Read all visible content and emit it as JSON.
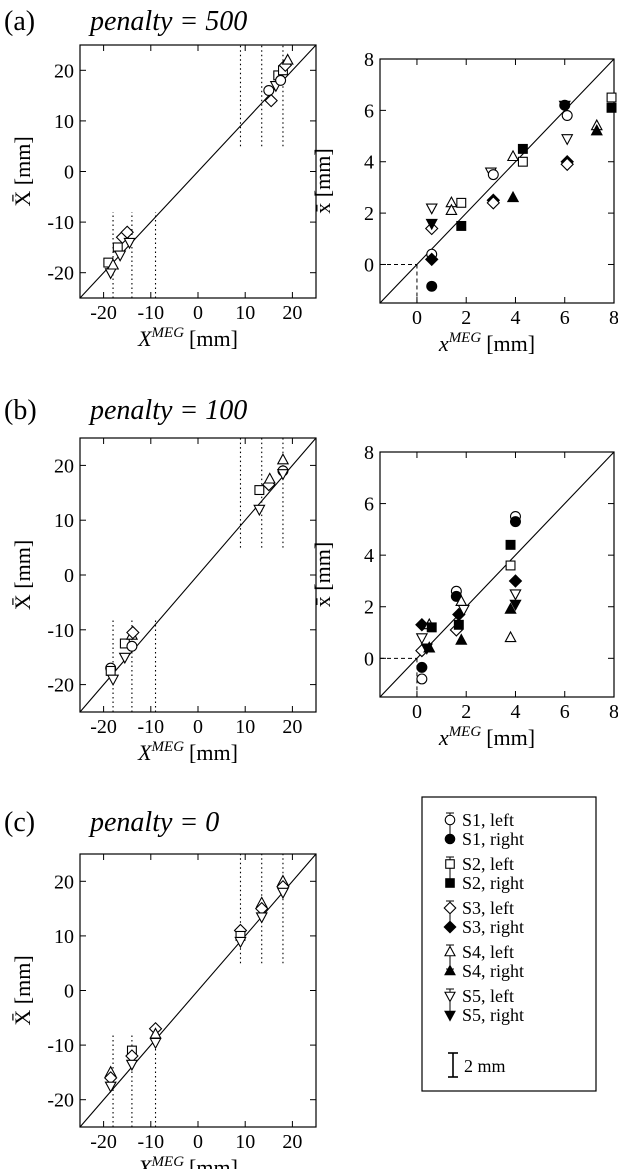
{
  "figure": {
    "panels": [
      {
        "label": "(a)",
        "penalty_label": "penalty = 500"
      },
      {
        "label": "(b)",
        "penalty_label": "penalty = 100"
      },
      {
        "label": "(c)",
        "penalty_label": "penalty = 0"
      }
    ],
    "legend": {
      "entries": [
        {
          "label": "S1, left",
          "marker": "circle",
          "filled": false
        },
        {
          "label": "S1, right",
          "marker": "circle",
          "filled": true
        },
        {
          "label": "S2, left",
          "marker": "square",
          "filled": false
        },
        {
          "label": "S2, right",
          "marker": "square",
          "filled": true
        },
        {
          "label": "S3, left",
          "marker": "diamond",
          "filled": false
        },
        {
          "label": "S3, right",
          "marker": "diamond",
          "filled": true
        },
        {
          "label": "S4, left",
          "marker": "triangle-up",
          "filled": false
        },
        {
          "label": "S4, right",
          "marker": "triangle-up",
          "filled": true
        },
        {
          "label": "S5, left",
          "marker": "triangle-down",
          "filled": false
        },
        {
          "label": "S5, right",
          "marker": "triangle-down",
          "filled": true
        }
      ],
      "scale_label": "2 mm"
    }
  },
  "chart_data": [
    {
      "type": "scatter",
      "panel": "(a)",
      "xlabel": "X",
      "xlabel_sup": "MEG",
      "xlabel_unit": "[mm]",
      "ylabel": "X̄ [mm]",
      "xlim": [
        -25,
        25
      ],
      "ylim": [
        -25,
        25
      ],
      "xticks": [
        -20,
        -10,
        0,
        10,
        20
      ],
      "yticks": [
        -20,
        -10,
        0,
        10,
        20
      ],
      "identity_line": true,
      "reference_x": [
        -18,
        -14,
        -9,
        9,
        13.5,
        18
      ],
      "reference_bands": [
        {
          "x": -18,
          "y": [
            -25,
            -8
          ]
        },
        {
          "x": -14,
          "y": [
            -25,
            -8
          ]
        },
        {
          "x": -9,
          "y": [
            -25,
            -8
          ]
        },
        {
          "x": 9,
          "y": [
            5,
            25
          ]
        },
        {
          "x": 13.5,
          "y": [
            5,
            25
          ]
        },
        {
          "x": 18,
          "y": [
            5,
            25
          ]
        }
      ],
      "points": [
        {
          "x": -19,
          "y": -18,
          "m": "square",
          "f": false
        },
        {
          "x": -18.5,
          "y": -20,
          "m": "triangle-down",
          "f": false
        },
        {
          "x": -18,
          "y": -18.5,
          "m": "triangle-up",
          "f": false
        },
        {
          "x": -17,
          "y": -15,
          "m": "square",
          "f": false
        },
        {
          "x": -16.5,
          "y": -16.5,
          "m": "triangle-down",
          "f": false
        },
        {
          "x": -16,
          "y": -13,
          "m": "diamond",
          "f": false
        },
        {
          "x": -15,
          "y": -12,
          "m": "diamond",
          "f": false
        },
        {
          "x": -14.5,
          "y": -14,
          "m": "triangle-down",
          "f": false
        },
        {
          "x": 15,
          "y": 16,
          "m": "circle",
          "f": false
        },
        {
          "x": 15.5,
          "y": 14,
          "m": "diamond",
          "f": false
        },
        {
          "x": 16.5,
          "y": 17,
          "m": "triangle-down",
          "f": false
        },
        {
          "x": 17,
          "y": 19,
          "m": "square",
          "f": false
        },
        {
          "x": 17.5,
          "y": 18,
          "m": "circle",
          "f": false
        },
        {
          "x": 18,
          "y": 20,
          "m": "square",
          "f": false
        },
        {
          "x": 18.5,
          "y": 21,
          "m": "diamond",
          "f": false
        },
        {
          "x": 19,
          "y": 22,
          "m": "triangle-up",
          "f": false
        }
      ]
    },
    {
      "type": "scatter",
      "panel": "(a)",
      "xlabel": "x",
      "xlabel_sup": "MEG",
      "xlabel_unit": "[mm]",
      "ylabel": "x̄ [mm]",
      "xlim": [
        -1.5,
        8
      ],
      "ylim": [
        -1.5,
        8
      ],
      "xticks": [
        0,
        2,
        4,
        6,
        8
      ],
      "yticks": [
        0,
        2,
        4,
        6,
        8
      ],
      "identity_line": true,
      "origin_guides": true,
      "points": [
        {
          "x": 0.6,
          "y": 0.4,
          "m": "circle",
          "f": false
        },
        {
          "x": 0.6,
          "y": -0.85,
          "m": "circle",
          "f": true
        },
        {
          "x": 0.6,
          "y": 0.2,
          "m": "diamond",
          "f": true
        },
        {
          "x": 0.6,
          "y": 1.4,
          "m": "diamond",
          "f": false
        },
        {
          "x": 0.6,
          "y": 2.2,
          "m": "triangle-down",
          "f": false
        },
        {
          "x": 0.6,
          "y": 1.6,
          "m": "triangle-down",
          "f": true
        },
        {
          "x": 1.4,
          "y": 2.4,
          "m": "triangle-up",
          "f": false
        },
        {
          "x": 1.4,
          "y": 2.1,
          "m": "triangle-up",
          "f": false
        },
        {
          "x": 1.8,
          "y": 2.4,
          "m": "square",
          "f": false
        },
        {
          "x": 1.8,
          "y": 1.5,
          "m": "square",
          "f": true
        },
        {
          "x": 3.0,
          "y": 3.6,
          "m": "triangle-down",
          "f": false
        },
        {
          "x": 3.1,
          "y": 3.5,
          "m": "circle",
          "f": false
        },
        {
          "x": 3.1,
          "y": 2.5,
          "m": "diamond",
          "f": true
        },
        {
          "x": 3.1,
          "y": 2.4,
          "m": "diamond",
          "f": false
        },
        {
          "x": 3.9,
          "y": 4.2,
          "m": "triangle-up",
          "f": false
        },
        {
          "x": 3.9,
          "y": 2.6,
          "m": "triangle-up",
          "f": true
        },
        {
          "x": 4.3,
          "y": 4.5,
          "m": "square",
          "f": true
        },
        {
          "x": 4.3,
          "y": 4.0,
          "m": "square",
          "f": false
        },
        {
          "x": 6.0,
          "y": 6.2,
          "m": "circle",
          "f": true
        },
        {
          "x": 6.0,
          "y": 6.2,
          "m": "triangle-down",
          "f": true
        },
        {
          "x": 6.1,
          "y": 5.8,
          "m": "circle",
          "f": false
        },
        {
          "x": 6.1,
          "y": 4.9,
          "m": "triangle-down",
          "f": false
        },
        {
          "x": 6.1,
          "y": 4.0,
          "m": "diamond",
          "f": true
        },
        {
          "x": 6.1,
          "y": 3.9,
          "m": "diamond",
          "f": false
        },
        {
          "x": 7.3,
          "y": 5.4,
          "m": "triangle-up",
          "f": false
        },
        {
          "x": 7.3,
          "y": 5.2,
          "m": "triangle-up",
          "f": true
        },
        {
          "x": 7.9,
          "y": 6.5,
          "m": "square",
          "f": false
        },
        {
          "x": 7.9,
          "y": 6.1,
          "m": "square",
          "f": true
        }
      ]
    },
    {
      "type": "scatter",
      "panel": "(b)",
      "xlabel": "X",
      "xlabel_sup": "MEG",
      "xlabel_unit": "[mm]",
      "ylabel": "X̄ [mm]",
      "xlim": [
        -25,
        25
      ],
      "ylim": [
        -25,
        25
      ],
      "xticks": [
        -20,
        -10,
        0,
        10,
        20
      ],
      "yticks": [
        -20,
        -10,
        0,
        10,
        20
      ],
      "identity_line": true,
      "reference_x": [
        -18,
        -14,
        -9,
        9,
        13.5,
        18
      ],
      "reference_bands": [
        {
          "x": -18,
          "y": [
            -25,
            -8
          ]
        },
        {
          "x": -14,
          "y": [
            -25,
            -8
          ]
        },
        {
          "x": -9,
          "y": [
            -25,
            -8
          ]
        },
        {
          "x": 9,
          "y": [
            5,
            25
          ]
        },
        {
          "x": 13.5,
          "y": [
            5,
            25
          ]
        },
        {
          "x": 18,
          "y": [
            5,
            25
          ]
        }
      ],
      "points": [
        {
          "x": -18.5,
          "y": -17,
          "m": "circle",
          "f": false
        },
        {
          "x": -18.5,
          "y": -17.5,
          "m": "square",
          "f": false
        },
        {
          "x": -18,
          "y": -19,
          "m": "triangle-down",
          "f": false
        },
        {
          "x": -15.5,
          "y": -12.5,
          "m": "square",
          "f": false
        },
        {
          "x": -15.5,
          "y": -15,
          "m": "triangle-down",
          "f": false
        },
        {
          "x": -14,
          "y": -13,
          "m": "circle",
          "f": false
        },
        {
          "x": -14,
          "y": -11,
          "m": "triangle-up",
          "f": false
        },
        {
          "x": -13.8,
          "y": -10.5,
          "m": "diamond",
          "f": false
        },
        {
          "x": 13,
          "y": 15.5,
          "m": "square",
          "f": false
        },
        {
          "x": 13,
          "y": 12,
          "m": "triangle-down",
          "f": false
        },
        {
          "x": 15,
          "y": 16.5,
          "m": "diamond",
          "f": false
        },
        {
          "x": 15.2,
          "y": 17.5,
          "m": "triangle-up",
          "f": false
        },
        {
          "x": 18,
          "y": 21,
          "m": "triangle-up",
          "f": false
        },
        {
          "x": 18,
          "y": 19,
          "m": "circle",
          "f": false
        },
        {
          "x": 18,
          "y": 18.5,
          "m": "triangle-down",
          "f": false
        }
      ]
    },
    {
      "type": "scatter",
      "panel": "(b)",
      "xlabel": "x",
      "xlabel_sup": "MEG",
      "xlabel_unit": "[mm]",
      "ylabel": "x̄ [mm]",
      "xlim": [
        -1.5,
        8
      ],
      "ylim": [
        -1.5,
        8
      ],
      "xticks": [
        0,
        2,
        4,
        6,
        8
      ],
      "yticks": [
        0,
        2,
        4,
        6,
        8
      ],
      "identity_line": true,
      "origin_guides": true,
      "points": [
        {
          "x": 0.2,
          "y": -0.8,
          "m": "circle",
          "f": false
        },
        {
          "x": 0.2,
          "y": -0.35,
          "m": "circle",
          "f": true
        },
        {
          "x": 0.2,
          "y": 0.3,
          "m": "diamond",
          "f": false
        },
        {
          "x": 0.2,
          "y": 0.8,
          "m": "triangle-down",
          "f": false
        },
        {
          "x": 0.2,
          "y": 1.3,
          "m": "diamond",
          "f": true
        },
        {
          "x": 0.5,
          "y": 1.3,
          "m": "triangle-up",
          "f": false
        },
        {
          "x": 0.5,
          "y": 0.4,
          "m": "triangle-up",
          "f": true
        },
        {
          "x": 0.6,
          "y": 1.2,
          "m": "square",
          "f": true
        },
        {
          "x": 0.4,
          "y": 0.4,
          "m": "triangle-down",
          "f": true
        },
        {
          "x": 1.6,
          "y": 2.6,
          "m": "circle",
          "f": false
        },
        {
          "x": 1.6,
          "y": 2.4,
          "m": "circle",
          "f": true
        },
        {
          "x": 1.6,
          "y": 1.1,
          "m": "diamond",
          "f": false
        },
        {
          "x": 1.7,
          "y": 1.3,
          "m": "square",
          "f": true
        },
        {
          "x": 1.7,
          "y": 1.7,
          "m": "diamond",
          "f": true
        },
        {
          "x": 1.8,
          "y": 2.2,
          "m": "triangle-up",
          "f": false
        },
        {
          "x": 1.8,
          "y": 0.7,
          "m": "triangle-up",
          "f": true
        },
        {
          "x": 1.9,
          "y": 1.9,
          "m": "triangle-down",
          "f": false
        },
        {
          "x": 3.8,
          "y": 4.4,
          "m": "square",
          "f": true
        },
        {
          "x": 3.8,
          "y": 3.6,
          "m": "square",
          "f": false
        },
        {
          "x": 3.8,
          "y": 0.8,
          "m": "triangle-up",
          "f": false
        },
        {
          "x": 3.8,
          "y": 1.9,
          "m": "triangle-up",
          "f": true
        },
        {
          "x": 4.0,
          "y": 5.5,
          "m": "circle",
          "f": false
        },
        {
          "x": 4.0,
          "y": 5.3,
          "m": "circle",
          "f": true
        },
        {
          "x": 4.0,
          "y": 3.0,
          "m": "diamond",
          "f": true
        },
        {
          "x": 4.0,
          "y": 2.5,
          "m": "triangle-down",
          "f": false
        },
        {
          "x": 4.0,
          "y": 2.1,
          "m": "triangle-down",
          "f": true
        }
      ]
    },
    {
      "type": "scatter",
      "panel": "(c)",
      "xlabel": "X",
      "xlabel_sup": "MEG",
      "xlabel_unit": "[mm]",
      "ylabel": "X̄ [mm]",
      "xlim": [
        -25,
        25
      ],
      "ylim": [
        -25,
        25
      ],
      "xticks": [
        -20,
        -10,
        0,
        10,
        20
      ],
      "yticks": [
        -20,
        -10,
        0,
        10,
        20
      ],
      "identity_line": true,
      "reference_x": [
        -18,
        -14,
        -9,
        9,
        13.5,
        18
      ],
      "reference_bands": [
        {
          "x": -18,
          "y": [
            -25,
            -8
          ]
        },
        {
          "x": -14,
          "y": [
            -25,
            -8
          ]
        },
        {
          "x": -9,
          "y": [
            -25,
            -8
          ]
        },
        {
          "x": 9,
          "y": [
            5,
            25
          ]
        },
        {
          "x": 13.5,
          "y": [
            5,
            25
          ]
        },
        {
          "x": 18,
          "y": [
            5,
            25
          ]
        }
      ],
      "points": [
        {
          "x": -18.5,
          "y": -15,
          "m": "triangle-up",
          "f": false
        },
        {
          "x": -18.5,
          "y": -16,
          "m": "diamond",
          "f": false
        },
        {
          "x": -18.5,
          "y": -17.5,
          "m": "triangle-down",
          "f": false
        },
        {
          "x": -14,
          "y": -11,
          "m": "square",
          "f": false
        },
        {
          "x": -14,
          "y": -12,
          "m": "diamond",
          "f": false
        },
        {
          "x": -14,
          "y": -13.5,
          "m": "triangle-down",
          "f": false
        },
        {
          "x": -9,
          "y": -7,
          "m": "diamond",
          "f": false
        },
        {
          "x": -9,
          "y": -8,
          "m": "triangle-up",
          "f": false
        },
        {
          "x": -9,
          "y": -9.5,
          "m": "triangle-down",
          "f": false
        },
        {
          "x": 9,
          "y": 11,
          "m": "diamond",
          "f": false
        },
        {
          "x": 9,
          "y": 10,
          "m": "square",
          "f": false
        },
        {
          "x": 9,
          "y": 9,
          "m": "triangle-down",
          "f": false
        },
        {
          "x": 13.5,
          "y": 16,
          "m": "triangle-up",
          "f": false
        },
        {
          "x": 13.5,
          "y": 15,
          "m": "diamond",
          "f": false
        },
        {
          "x": 13.5,
          "y": 13.5,
          "m": "triangle-down",
          "f": false
        },
        {
          "x": 18,
          "y": 20,
          "m": "triangle-up",
          "f": false
        },
        {
          "x": 18,
          "y": 19,
          "m": "diamond",
          "f": false
        },
        {
          "x": 18,
          "y": 18,
          "m": "triangle-down",
          "f": false
        }
      ]
    }
  ]
}
